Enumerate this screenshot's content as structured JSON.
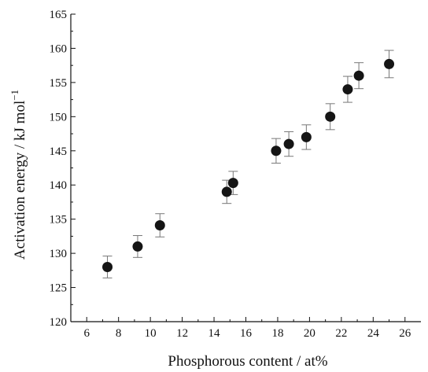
{
  "chart_data": {
    "type": "scatter",
    "title": "",
    "xlabel": "Phosphorous content / at%",
    "ylabel": "Activation energy / kJ mol",
    "ylabel_superscript": "−1",
    "xlim": [
      5,
      27
    ],
    "ylim": [
      120,
      165
    ],
    "x_ticks": [
      6,
      8,
      10,
      12,
      14,
      16,
      18,
      20,
      22,
      24,
      26
    ],
    "y_ticks": [
      120,
      125,
      130,
      135,
      140,
      145,
      150,
      155,
      160,
      165
    ],
    "grid": false,
    "legend": "none",
    "marker_color": "#151515",
    "errorbar_color": "#777777",
    "series": [
      {
        "points": [
          {
            "x": 7.3,
            "y": 128.0,
            "err": 1.6
          },
          {
            "x": 9.2,
            "y": 131.0,
            "err": 1.6
          },
          {
            "x": 10.6,
            "y": 134.1,
            "err": 1.7
          },
          {
            "x": 14.8,
            "y": 139.0,
            "err": 1.7
          },
          {
            "x": 15.2,
            "y": 140.3,
            "err": 1.7
          },
          {
            "x": 17.9,
            "y": 145.0,
            "err": 1.8
          },
          {
            "x": 18.7,
            "y": 146.0,
            "err": 1.8
          },
          {
            "x": 19.8,
            "y": 147.0,
            "err": 1.8
          },
          {
            "x": 21.3,
            "y": 150.0,
            "err": 1.9
          },
          {
            "x": 22.4,
            "y": 154.0,
            "err": 1.9
          },
          {
            "x": 23.1,
            "y": 156.0,
            "err": 1.9
          },
          {
            "x": 25.0,
            "y": 157.7,
            "err": 2.0
          }
        ]
      }
    ]
  }
}
